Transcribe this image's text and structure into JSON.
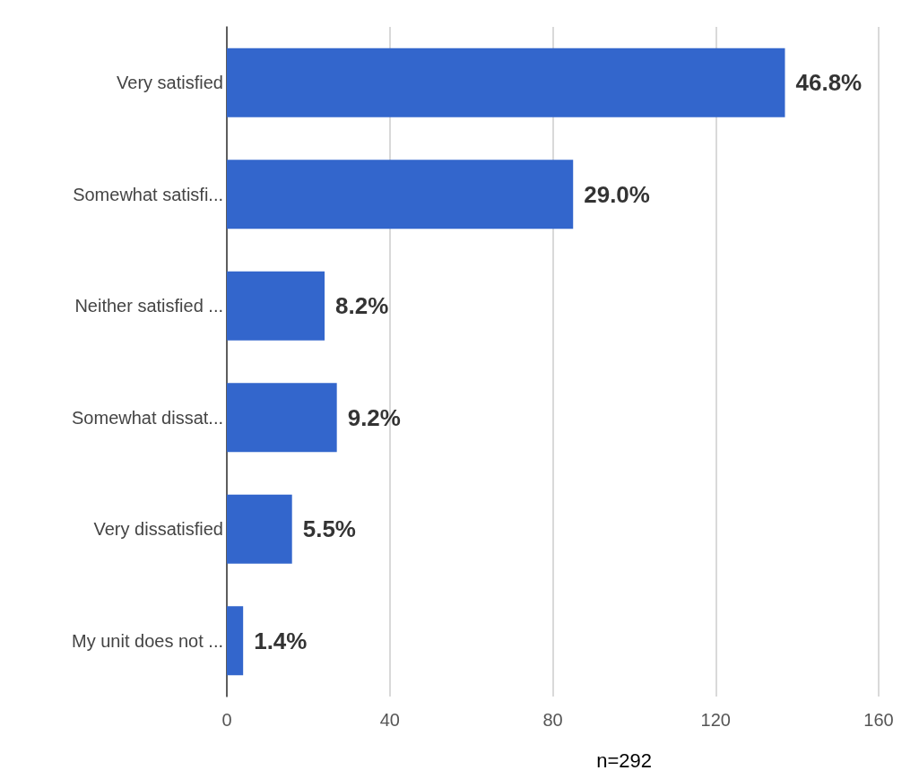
{
  "chart_data": {
    "type": "bar",
    "orientation": "horizontal",
    "categories": [
      "Very satisfied",
      "Somewhat satisfi...",
      "Neither satisfied ...",
      "Somewhat dissat...",
      "Very dissatisfied",
      "My unit does not ..."
    ],
    "values": [
      137,
      85,
      24,
      27,
      16,
      4
    ],
    "color": "#3366cc",
    "xlim": [
      0,
      160
    ],
    "xticks": [
      0,
      40,
      80,
      120,
      160
    ],
    "grid": "x",
    "annotations": [
      {
        "text": "46.8%",
        "x": 137,
        "y": "Very satisfied"
      },
      {
        "text": "29.0%",
        "x": 85,
        "y": "Somewhat satisfi..."
      },
      {
        "text": "8.2%",
        "x": 24,
        "y": "Neither satisfied ..."
      },
      {
        "text": "9.2%",
        "x": 27,
        "y": "Somewhat dissat..."
      },
      {
        "text": "5.5%",
        "x": 16,
        "y": "Very dissatisfied"
      },
      {
        "text": "1.4%",
        "x": 4,
        "y": "My unit does not ..."
      },
      "n=292"
    ]
  }
}
